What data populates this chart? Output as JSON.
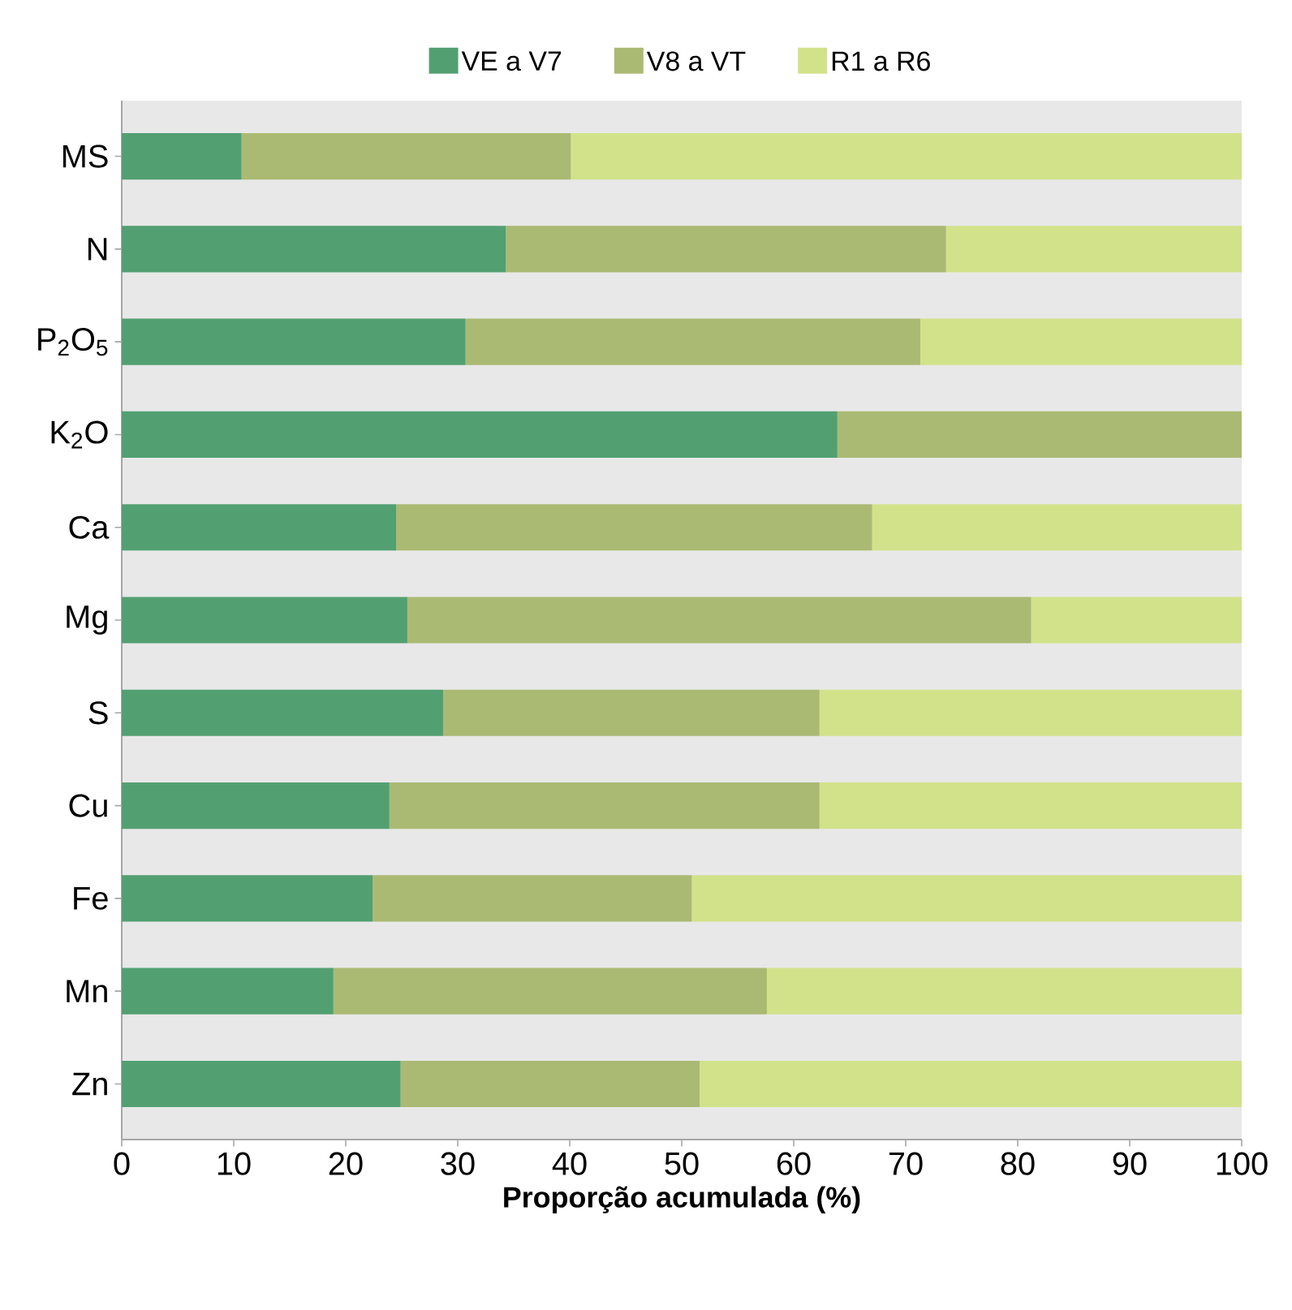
{
  "chart_data": {
    "type": "bar",
    "orientation": "horizontal",
    "stacked": true,
    "xlabel": "Proporção acumulada (%)",
    "categories": [
      "MS",
      "N",
      "P$_{2}$O$_{5}$",
      "K$_{2}$O",
      "Ca",
      "Mg",
      "S",
      "Cu",
      "Fe",
      "Mn",
      "Zn"
    ],
    "series": [
      {
        "name": "VE a V7",
        "color": "#52a072",
        "values": [
          10.7,
          34.3,
          30.7,
          63.9,
          24.5,
          25.5,
          28.7,
          23.9,
          22.4,
          18.9,
          24.9
        ]
      },
      {
        "name": "V8 a VT",
        "color": "#abba72",
        "values": [
          29.4,
          39.3,
          40.6,
          36.1,
          42.5,
          55.7,
          33.6,
          38.4,
          28.5,
          38.7,
          26.7
        ]
      },
      {
        "name": "R1 a R6",
        "color": "#d2e28a",
        "values": [
          59.9,
          26.4,
          28.7,
          0,
          33.0,
          18.8,
          37.7,
          37.7,
          49.1,
          42.4,
          48.4
        ]
      }
    ],
    "xlim": [
      0,
      100
    ],
    "xticks": [
      0,
      10,
      20,
      30,
      40,
      50,
      60,
      70,
      80,
      90,
      100
    ],
    "legend": "top",
    "grid": false
  }
}
